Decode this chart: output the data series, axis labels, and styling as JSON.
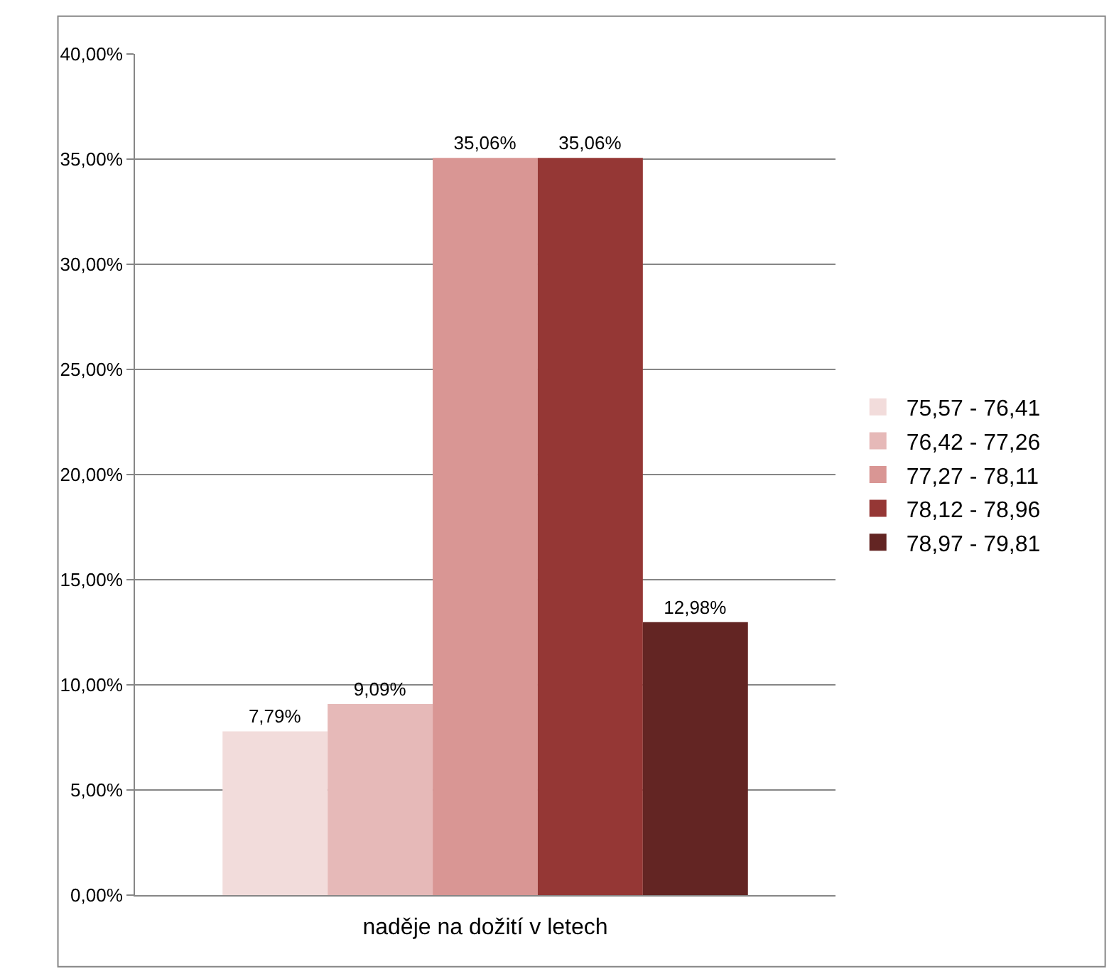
{
  "chart_data": {
    "type": "bar",
    "xlabel": "naděje na dožití v letech",
    "categories": [
      null
    ],
    "series": [
      {
        "name": "75,57 - 76,41",
        "color": "#f2dcdb",
        "values": [
          7.79
        ],
        "value_labels": [
          "7,79%"
        ]
      },
      {
        "name": "76,42 - 77,26",
        "color": "#e6b9b8",
        "values": [
          9.09
        ],
        "value_labels": [
          "9,09%"
        ]
      },
      {
        "name": "77,27 - 78,11",
        "color": "#d99694",
        "values": [
          35.06
        ],
        "value_labels": [
          "35,06%"
        ]
      },
      {
        "name": "78,12 - 78,96",
        "color": "#953735",
        "values": [
          35.06
        ],
        "value_labels": [
          "35,06%"
        ]
      },
      {
        "name": "78,97 - 79,81",
        "color": "#632523",
        "values": [
          12.98
        ],
        "value_labels": [
          "12,98%"
        ]
      }
    ],
    "ylim": [
      0,
      40
    ],
    "yticks": [
      {
        "value": 0,
        "label": "0,00%"
      },
      {
        "value": 5,
        "label": "5,00%"
      },
      {
        "value": 10,
        "label": "10,00%"
      },
      {
        "value": 15,
        "label": "15,00%"
      },
      {
        "value": 20,
        "label": "20,00%"
      },
      {
        "value": 25,
        "label": "25,00%"
      },
      {
        "value": 30,
        "label": "30,00%"
      },
      {
        "value": 35,
        "label": "35,00%"
      },
      {
        "value": 40,
        "label": "40,00%"
      }
    ],
    "grid": "y",
    "legend": "right"
  }
}
